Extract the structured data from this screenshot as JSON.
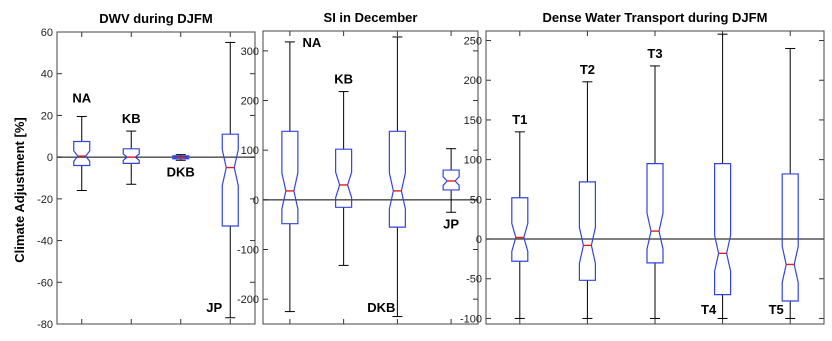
{
  "figure": {
    "ylabel": "Climate Adjustment [%]"
  },
  "chart_data": [
    {
      "type": "boxplot",
      "title": "DWV during DJFM",
      "xlabel": "",
      "ylim": [
        -80,
        60
      ],
      "yticks": [
        -80,
        -60,
        -40,
        -20,
        0,
        20,
        40,
        60
      ],
      "zero_line": true,
      "notched": true,
      "categories": [
        "NA",
        "KB",
        "DKB",
        "JP"
      ],
      "boxes": [
        {
          "label": "NA",
          "whisker_low": -16,
          "q1": -4,
          "median": 0.5,
          "q3": 7.5,
          "whisker_high": 19.5,
          "label_pos": "above"
        },
        {
          "label": "KB",
          "whisker_low": -13,
          "q1": -3,
          "median": 0,
          "q3": 4,
          "whisker_high": 12.5,
          "label_pos": "above"
        },
        {
          "label": "DKB",
          "whisker_low": -1.5,
          "q1": -0.8,
          "median": -0.2,
          "q3": 0.6,
          "whisker_high": 1.2,
          "label_pos": "below"
        },
        {
          "label": "JP",
          "whisker_low": -77,
          "q1": -33,
          "median": -5,
          "q3": 11,
          "whisker_high": 55,
          "label_pos": "bottom"
        }
      ]
    },
    {
      "type": "boxplot",
      "title": "SI in December",
      "xlabel": "",
      "ylim": [
        -250,
        340
      ],
      "yticks": [
        -200,
        -100,
        0,
        100,
        200,
        300
      ],
      "zero_line": true,
      "notched": true,
      "categories": [
        "NA",
        "KB",
        "DKB",
        "JP"
      ],
      "boxes": [
        {
          "label": "NA",
          "whisker_low": -225,
          "q1": -48,
          "median": 18,
          "q3": 138,
          "whisker_high": 318,
          "label_pos": "top"
        },
        {
          "label": "KB",
          "whisker_low": -132,
          "q1": -15,
          "median": 30,
          "q3": 102,
          "whisker_high": 218,
          "label_pos": "above"
        },
        {
          "label": "DKB",
          "whisker_low": -235,
          "q1": -55,
          "median": 18,
          "q3": 138,
          "whisker_high": 328,
          "label_pos": "bottom"
        },
        {
          "label": "JP",
          "whisker_low": -25,
          "q1": 20,
          "median": 38,
          "q3": 60,
          "whisker_high": 103,
          "label_pos": "below"
        }
      ]
    },
    {
      "type": "boxplot",
      "title": "Dense Water Transport during DJFM",
      "xlabel": "",
      "ylim": [
        -107,
        262
      ],
      "yticks": [
        -100,
        -50,
        0,
        50,
        100,
        150,
        200,
        250
      ],
      "zero_line": true,
      "notched": true,
      "categories": [
        "T1",
        "T2",
        "T3",
        "T4",
        "T5"
      ],
      "boxes": [
        {
          "label": "T1",
          "whisker_low": -100,
          "q1": -28,
          "median": 2,
          "q3": 52,
          "whisker_high": 135,
          "label_pos": "above"
        },
        {
          "label": "T2",
          "whisker_low": -100,
          "q1": -52,
          "median": -8,
          "q3": 72,
          "whisker_high": 198,
          "label_pos": "above"
        },
        {
          "label": "T3",
          "whisker_low": -100,
          "q1": -30,
          "median": 10,
          "q3": 95,
          "whisker_high": 218,
          "label_pos": "above"
        },
        {
          "label": "T4",
          "whisker_low": -100,
          "q1": -70,
          "median": -18,
          "q3": 95,
          "whisker_high": 258,
          "label_pos": "below"
        },
        {
          "label": "T5",
          "whisker_low": -100,
          "q1": -78,
          "median": -32,
          "q3": 82,
          "whisker_high": 240,
          "label_pos": "below"
        }
      ]
    }
  ]
}
